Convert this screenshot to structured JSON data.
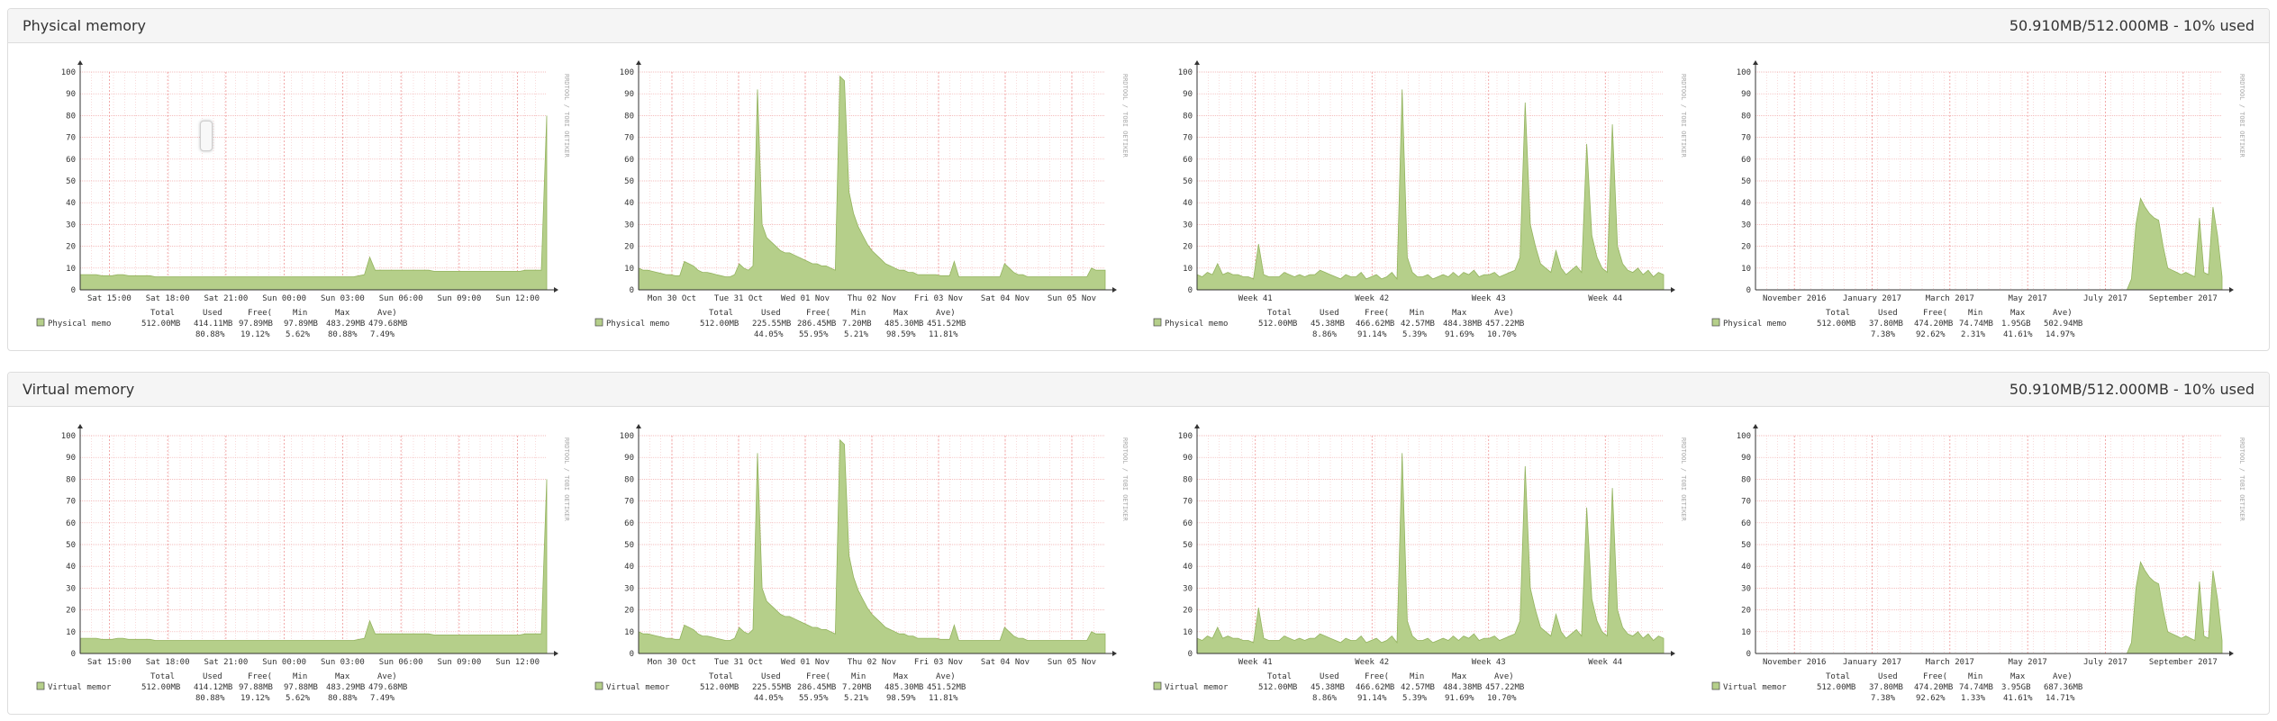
{
  "sections": [
    {
      "id": "physical",
      "title": "Physical memory",
      "usage": "50.910MB/512.000MB - 10% used",
      "graphs": [
        {
          "period": "day",
          "x_ticks": [
            "Sat 15:00",
            "Sat 18:00",
            "Sat 21:00",
            "Sun 00:00",
            "Sun 03:00",
            "Sun 06:00",
            "Sun 09:00",
            "Sun 12:00"
          ],
          "legend": {
            "name": "Physical memo",
            "total": "512.00MB",
            "used": "414.11MB",
            "free": "97.89MB",
            "min": "97.89MB",
            "max": "483.29MB",
            "avg": "479.68MB",
            "pct_used": "80.88%",
            "pct_free": "19.12%",
            "pct_min": "5.62%",
            "pct_max": "80.88%",
            "pct_avg": "7.49%"
          }
        },
        {
          "period": "week",
          "x_ticks": [
            "Mon 30 Oct",
            "Tue 31 Oct",
            "Wed 01 Nov",
            "Thu 02 Nov",
            "Fri 03 Nov",
            "Sat 04 Nov",
            "Sun 05 Nov"
          ],
          "legend": {
            "name": "Physical memo",
            "total": "512.00MB",
            "used": "225.55MB",
            "free": "286.45MB",
            "min": "7.20MB",
            "max": "485.30MB",
            "avg": "451.52MB",
            "pct_used": "44.05%",
            "pct_free": "55.95%",
            "pct_min": "5.21%",
            "pct_max": "98.59%",
            "pct_avg": "11.81%"
          }
        },
        {
          "period": "month",
          "x_ticks": [
            "Week 41",
            "Week 42",
            "Week 43",
            "Week 44"
          ],
          "legend": {
            "name": "Physical memo",
            "total": "512.00MB",
            "used": "45.38MB",
            "free": "466.62MB",
            "min": "42.57MB",
            "max": "484.38MB",
            "avg": "457.22MB",
            "pct_used": "8.86%",
            "pct_free": "91.14%",
            "pct_min": "5.39%",
            "pct_max": "91.69%",
            "pct_avg": "10.70%"
          }
        },
        {
          "period": "year",
          "x_ticks": [
            "November 2016",
            "January 2017",
            "March 2017",
            "May 2017",
            "July 2017",
            "September 2017"
          ],
          "legend": {
            "name": "Physical memo",
            "total": "512.00MB",
            "used": "37.80MB",
            "free": "474.20MB",
            "min": "74.74MB",
            "max": "1.95GB",
            "avg": "502.94MB",
            "pct_used": "7.38%",
            "pct_free": "92.62%",
            "pct_min": "2.31%",
            "pct_max": "41.61%",
            "pct_avg": "14.97%"
          }
        }
      ]
    },
    {
      "id": "virtual",
      "title": "Virtual memory",
      "usage": "50.910MB/512.000MB - 10% used",
      "graphs": [
        {
          "period": "day",
          "x_ticks": [
            "Sat 15:00",
            "Sat 18:00",
            "Sat 21:00",
            "Sun 00:00",
            "Sun 03:00",
            "Sun 06:00",
            "Sun 09:00",
            "Sun 12:00"
          ],
          "legend": {
            "name": "Virtual memor",
            "total": "512.00MB",
            "used": "414.12MB",
            "free": "97.88MB",
            "min": "97.88MB",
            "max": "483.29MB",
            "avg": "479.68MB",
            "pct_used": "80.88%",
            "pct_free": "19.12%",
            "pct_min": "5.62%",
            "pct_max": "80.88%",
            "pct_avg": "7.49%"
          }
        },
        {
          "period": "week",
          "x_ticks": [
            "Mon 30 Oct",
            "Tue 31 Oct",
            "Wed 01 Nov",
            "Thu 02 Nov",
            "Fri 03 Nov",
            "Sat 04 Nov",
            "Sun 05 Nov"
          ],
          "legend": {
            "name": "Virtual memor",
            "total": "512.00MB",
            "used": "225.55MB",
            "free": "286.45MB",
            "min": "7.20MB",
            "max": "485.30MB",
            "avg": "451.52MB",
            "pct_used": "44.05%",
            "pct_free": "55.95%",
            "pct_min": "5.21%",
            "pct_max": "98.59%",
            "pct_avg": "11.81%"
          }
        },
        {
          "period": "month",
          "x_ticks": [
            "Week 41",
            "Week 42",
            "Week 43",
            "Week 44"
          ],
          "legend": {
            "name": "Virtual memor",
            "total": "512.00MB",
            "used": "45.38MB",
            "free": "466.62MB",
            "min": "42.57MB",
            "max": "484.38MB",
            "avg": "457.22MB",
            "pct_used": "8.86%",
            "pct_free": "91.14%",
            "pct_min": "5.39%",
            "pct_max": "91.69%",
            "pct_avg": "10.70%"
          }
        },
        {
          "period": "year",
          "x_ticks": [
            "November 2016",
            "January 2017",
            "March 2017",
            "May 2017",
            "July 2017",
            "September 2017"
          ],
          "legend": {
            "name": "Virtual memor",
            "total": "512.00MB",
            "used": "37.80MB",
            "free": "474.20MB",
            "min": "74.74MB",
            "max": "3.95GB",
            "avg": "687.36MB",
            "pct_used": "7.38%",
            "pct_free": "92.62%",
            "pct_min": "1.33%",
            "pct_max": "41.61%",
            "pct_avg": "14.71%"
          }
        }
      ]
    }
  ],
  "legend_headers": [
    "Total",
    "Used",
    "Free(",
    "Min",
    "Max",
    "Ave)"
  ],
  "watermark": "RRDTOOL / TOBI OETIKER",
  "chart_data": [
    {
      "type": "area",
      "panel": "day",
      "ylim": [
        0,
        100
      ],
      "y_ticks": [
        0,
        10,
        20,
        30,
        40,
        50,
        60,
        70,
        80,
        90,
        100
      ],
      "series": [
        {
          "values": [
            7,
            7,
            7,
            7,
            6.5,
            6.5,
            6.5,
            7,
            7,
            6.5,
            6.5,
            6.5,
            6.5,
            6.5,
            6,
            6,
            6,
            6,
            6,
            6,
            6,
            6,
            6,
            6,
            6,
            6,
            6,
            6,
            6,
            6,
            6,
            6,
            6,
            6,
            6,
            6,
            6,
            6,
            6,
            6,
            6,
            6,
            6,
            6,
            6,
            6,
            6,
            6,
            6,
            6,
            6,
            6,
            6.5,
            7,
            15,
            9,
            9,
            9,
            9,
            9,
            9,
            9,
            9,
            9,
            9,
            9,
            8.5,
            8.5,
            8.5,
            8.5,
            8.5,
            8.5,
            8.5,
            8.5,
            8.5,
            8.5,
            8.5,
            8.5,
            8.5,
            8.5,
            8.5,
            8.5,
            8.5,
            9,
            9,
            9,
            9,
            80
          ]
        }
      ]
    },
    {
      "type": "area",
      "panel": "week",
      "ylim": [
        0,
        100
      ],
      "y_ticks": [
        0,
        10,
        20,
        30,
        40,
        50,
        60,
        70,
        80,
        90,
        100
      ],
      "series": [
        {
          "values": [
            10,
            9,
            9,
            8.5,
            8,
            7.5,
            7,
            7,
            6.5,
            6.5,
            13,
            12,
            11,
            9,
            8,
            8,
            7.5,
            7,
            6.5,
            6,
            6,
            7,
            12,
            10,
            9,
            11,
            92,
            30,
            24,
            22,
            20,
            18,
            17,
            17,
            16,
            15,
            14,
            13,
            12,
            12,
            11,
            11,
            10,
            9,
            98,
            96,
            45,
            35,
            29,
            25,
            21,
            18,
            16,
            14,
            12,
            11,
            10,
            9,
            9,
            8,
            8,
            7,
            7,
            7,
            7,
            7,
            6.5,
            6.5,
            6.5,
            13,
            6,
            6,
            6,
            6,
            6,
            6,
            6,
            6,
            6,
            6,
            12,
            10,
            8,
            7,
            7,
            6,
            6,
            6,
            6,
            6,
            6,
            6,
            6,
            6,
            6,
            6,
            6,
            6,
            6,
            10,
            9,
            9,
            9
          ]
        }
      ]
    },
    {
      "type": "area",
      "panel": "month",
      "ylim": [
        0,
        100
      ],
      "y_ticks": [
        0,
        10,
        20,
        30,
        40,
        50,
        60,
        70,
        80,
        90,
        100
      ],
      "series": [
        {
          "values": [
            7,
            6,
            8,
            7,
            12,
            7,
            8,
            7,
            7,
            6,
            6,
            5,
            21,
            7,
            6,
            6,
            6,
            8,
            7,
            6,
            7,
            6,
            7,
            7,
            9,
            8,
            7,
            6,
            5,
            7,
            6,
            6,
            8,
            5,
            6,
            7,
            5,
            6,
            8,
            5,
            92,
            15,
            8,
            6,
            6,
            7,
            5,
            6,
            7,
            6,
            8,
            6,
            8,
            7,
            9,
            6,
            7,
            7,
            8,
            6,
            7,
            8,
            9,
            15,
            86,
            30,
            20,
            12,
            10,
            8,
            18,
            10,
            7,
            9,
            11,
            8,
            67,
            25,
            15,
            10,
            8,
            76,
            20,
            12,
            9,
            8,
            10,
            7,
            9,
            6,
            8,
            7
          ]
        }
      ]
    },
    {
      "type": "area",
      "panel": "year",
      "ylim": [
        0,
        100
      ],
      "y_ticks": [
        0,
        10,
        20,
        30,
        40,
        50,
        60,
        70,
        80,
        90,
        100
      ],
      "series": [
        {
          "values": [
            0,
            0,
            0,
            0,
            0,
            0,
            0,
            0,
            0,
            0,
            0,
            0,
            0,
            0,
            0,
            0,
            0,
            0,
            0,
            0,
            0,
            0,
            0,
            0,
            0,
            0,
            0,
            0,
            0,
            0,
            0,
            0,
            0,
            0,
            0,
            0,
            0,
            0,
            0,
            0,
            0,
            0,
            0,
            0,
            0,
            0,
            0,
            0,
            0,
            0,
            0,
            0,
            0,
            0,
            0,
            0,
            0,
            0,
            0,
            0,
            0,
            0,
            0,
            0,
            0,
            0,
            0,
            0,
            0,
            0,
            0,
            0,
            0,
            0,
            0,
            0,
            0,
            0,
            0,
            0,
            0,
            0,
            0,
            5,
            30,
            42,
            38,
            35,
            33,
            32,
            20,
            10,
            9,
            8,
            7,
            8,
            7,
            6,
            33,
            8,
            7,
            38,
            25,
            6
          ]
        }
      ]
    }
  ]
}
